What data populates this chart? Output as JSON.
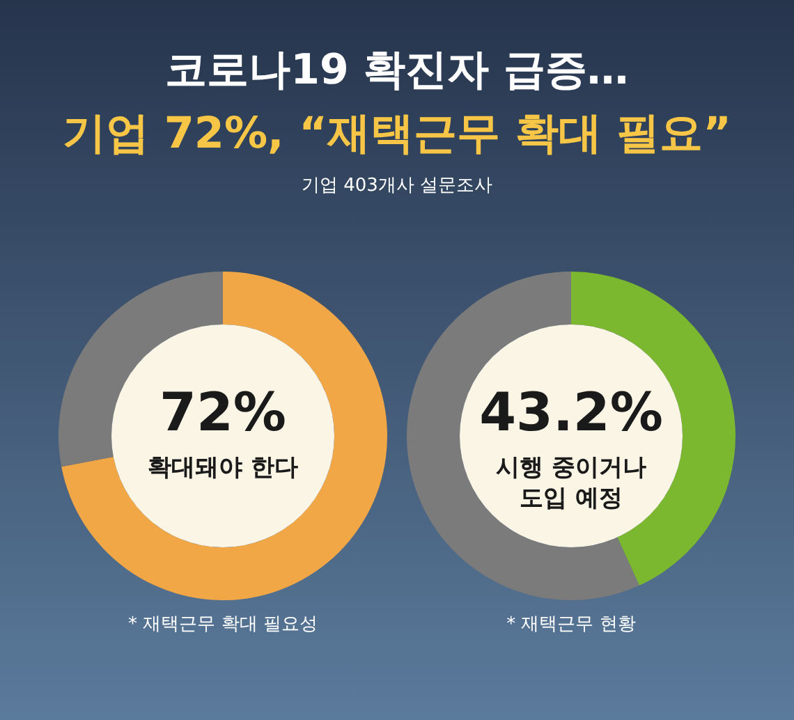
{
  "chart_data": [
    {
      "type": "donut",
      "title": "코로나19 확진자 급증…",
      "subtitle": "기업 72%, “재택근무 확대 필요”",
      "categories": [
        "확대돼야 한다",
        null
      ],
      "values": [
        72,
        28
      ],
      "colors": [
        "#f2a746",
        "#7b7b7b"
      ],
      "value_labels": [
        "72%",
        null
      ],
      "annotations": [
        "기업 403개사 설문조사",
        "* 재택근무 확대 필요성"
      ]
    },
    {
      "type": "donut",
      "categories": [
        "시행 중이거나\n도입 예정",
        null
      ],
      "values": [
        43.2,
        56.8
      ],
      "colors": [
        "#7cb82f",
        "#7b7b7b"
      ],
      "value_labels": [
        "43.2%",
        null
      ],
      "annotations": [
        "* 재택근무 현황"
      ]
    }
  ]
}
